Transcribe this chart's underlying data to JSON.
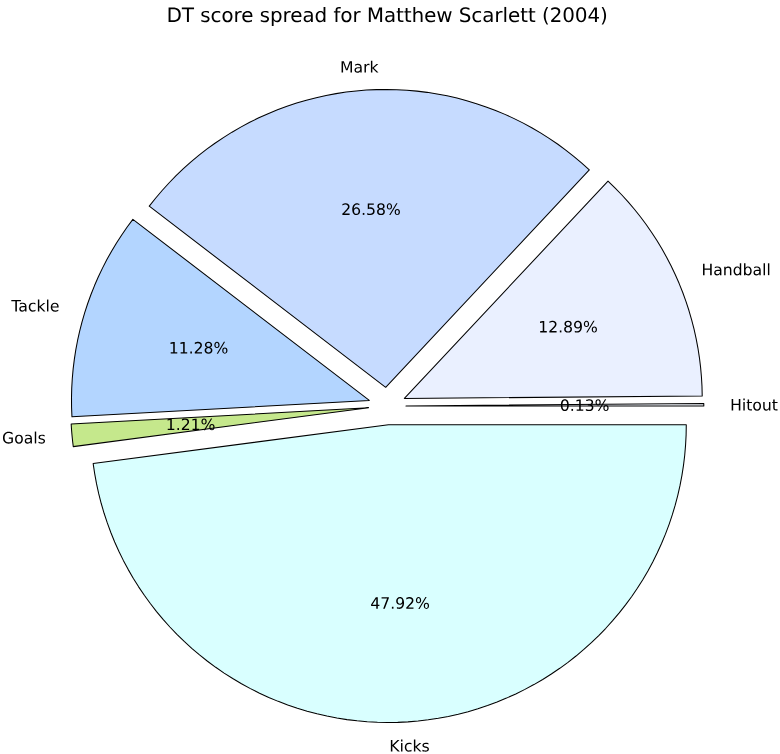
{
  "chart_data": {
    "type": "pie",
    "title": "DT score spread for Matthew Scarlett (2004)",
    "categories": [
      "Hitout",
      "Handball",
      "Mark",
      "Tackle",
      "Goals",
      "Kicks"
    ],
    "values": [
      0.13,
      12.89,
      26.58,
      11.28,
      1.21,
      47.92
    ],
    "colors": [
      "#f5f8ff",
      "#eaf0ff",
      "#c6dbff",
      "#b3d5ff",
      "#c5e88c",
      "#d9ffff"
    ],
    "value_labels": [
      "0.13%",
      "12.89%",
      "26.58%",
      "11.28%",
      "1.21%",
      "47.92%"
    ]
  }
}
